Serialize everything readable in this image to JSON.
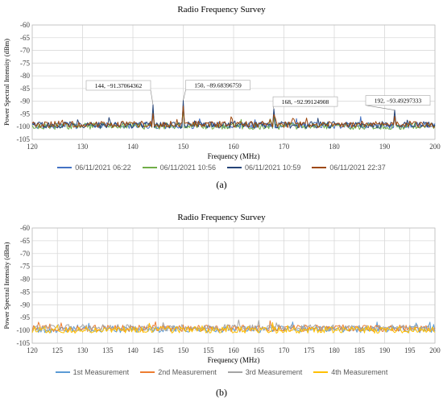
{
  "chart_data": [
    {
      "type": "line",
      "title": "Radio Frequency Survey",
      "xlabel": "Frequency (MHz)",
      "ylabel": "Power Spectral Intensity (dBm)",
      "xlim": [
        120,
        200
      ],
      "ylim": [
        -105,
        -60
      ],
      "xticks": [
        120,
        130,
        140,
        150,
        160,
        170,
        180,
        190,
        200
      ],
      "yticks": [
        -60,
        -65,
        -70,
        -75,
        -80,
        -85,
        -90,
        -95,
        -100,
        -105
      ],
      "grid": true,
      "legend_position": "bottom",
      "series": [
        {
          "name": "06/11/2021 06:22",
          "color": "#4472C4",
          "baseline": -99.5
        },
        {
          "name": "06/11/2021 10:56",
          "color": "#70AD47",
          "baseline": -99.8
        },
        {
          "name": "06/11/2021 10:59",
          "color": "#264478",
          "baseline": -99.3
        },
        {
          "name": "06/11/2021 22:37",
          "color": "#9E480E",
          "baseline": -99.1
        }
      ],
      "peaks": [
        {
          "x": 144,
          "y": -91.37064362
        },
        {
          "x": 150,
          "y": -89.68396759
        },
        {
          "x": 168,
          "y": -92.99124908
        },
        {
          "x": 192,
          "y": -93.49297333
        }
      ],
      "annotations": [
        {
          "text": "144, −91.37064362",
          "x": 144,
          "y": -91.37064362
        },
        {
          "text": "150, −89.68396759",
          "x": 150,
          "y": -89.68396759
        },
        {
          "text": "168, −92.99124908",
          "x": 168,
          "y": -92.99124908
        },
        {
          "text": "192, −93.49297333",
          "x": 192,
          "y": -93.49297333
        }
      ]
    },
    {
      "type": "line",
      "title": "Radio Frequency Survey",
      "xlabel": "Frequency (MHz)",
      "ylabel": "Power Spectral Intensity (dBm)",
      "xlim": [
        120,
        200
      ],
      "ylim": [
        -105,
        -60
      ],
      "xticks": [
        120,
        125,
        130,
        135,
        140,
        145,
        150,
        155,
        160,
        165,
        170,
        175,
        180,
        185,
        190,
        195,
        200
      ],
      "yticks": [
        -60,
        -65,
        -70,
        -75,
        -80,
        -85,
        -90,
        -95,
        -100,
        -105
      ],
      "grid": true,
      "legend_position": "bottom",
      "series": [
        {
          "name": "1st Measurement",
          "color": "#5B9BD5",
          "baseline": -99.6
        },
        {
          "name": "2nd Measurement",
          "color": "#ED7D31",
          "baseline": -99.2
        },
        {
          "name": "3rd Measurement",
          "color": "#A5A5A5",
          "baseline": -99.0
        },
        {
          "name": "4th Measurement",
          "color": "#FFC000",
          "baseline": -99.8
        }
      ],
      "peaks": [],
      "annotations": []
    }
  ],
  "captions": [
    "(a)",
    "(b)"
  ]
}
